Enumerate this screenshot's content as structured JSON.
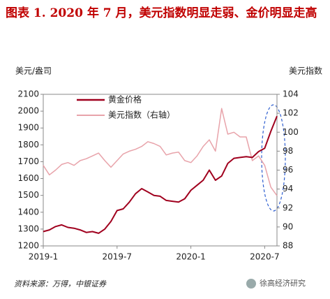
{
  "chart_data": {
    "type": "line",
    "title": "图表 1. 2020 年 7 月，美元指数明显走弱、金价明显走高",
    "y_label": "美元/盎司",
    "y2_label": "美元指数",
    "source": "资料来源：万得，中银证券",
    "watermark": "徐高经济研究",
    "x": [
      0,
      0.5,
      1,
      1.5,
      2,
      2.5,
      3,
      3.5,
      4,
      4.5,
      5,
      5.5,
      6,
      6.5,
      7,
      7.5,
      8,
      8.5,
      9,
      9.5,
      10,
      10.5,
      11,
      11.5,
      12,
      12.5,
      13,
      13.5,
      14,
      14.5,
      15,
      15.5,
      16,
      16.5,
      17,
      17.5,
      18,
      18.5,
      19
    ],
    "xlim": [
      0,
      19
    ],
    "xticks": [
      {
        "value": 0,
        "label": "2019-1"
      },
      {
        "value": 6,
        "label": "2019-7"
      },
      {
        "value": 12,
        "label": "2020-1"
      },
      {
        "value": 18,
        "label": "2020-7"
      }
    ],
    "ylim": [
      1200,
      2100
    ],
    "yticks": [
      1200,
      1300,
      1400,
      1500,
      1600,
      1700,
      1800,
      1900,
      2000,
      2100
    ],
    "y2lim": [
      88,
      104
    ],
    "y2ticks": [
      88,
      90,
      92,
      94,
      96,
      98,
      100,
      102,
      104
    ],
    "series": [
      {
        "name": "黄金价格",
        "color": "#a0001e",
        "width": 2,
        "values": [
          1285,
          1295,
          1315,
          1325,
          1310,
          1305,
          1295,
          1280,
          1285,
          1275,
          1300,
          1345,
          1410,
          1420,
          1460,
          1510,
          1540,
          1520,
          1500,
          1495,
          1470,
          1465,
          1460,
          1480,
          1530,
          1560,
          1590,
          1650,
          1590,
          1615,
          1690,
          1720,
          1725,
          1730,
          1725,
          1760,
          1780,
          1880,
          1970
        ]
      },
      {
        "name": "美元指数（右轴）",
        "color": "#e8a3aa",
        "width": 1.5,
        "axis": "y2",
        "values": [
          96.5,
          95.5,
          96.0,
          96.6,
          96.8,
          96.5,
          97.0,
          97.2,
          97.5,
          97.8,
          97.0,
          96.3,
          97.0,
          97.7,
          98.0,
          98.2,
          98.5,
          99.0,
          98.8,
          98.5,
          97.6,
          97.8,
          97.9,
          97.0,
          96.8,
          97.5,
          98.5,
          99.2,
          98.0,
          102.5,
          99.8,
          100.0,
          99.5,
          99.5,
          97.0,
          97.5,
          96.5,
          94.2,
          93.3
        ]
      }
    ]
  }
}
